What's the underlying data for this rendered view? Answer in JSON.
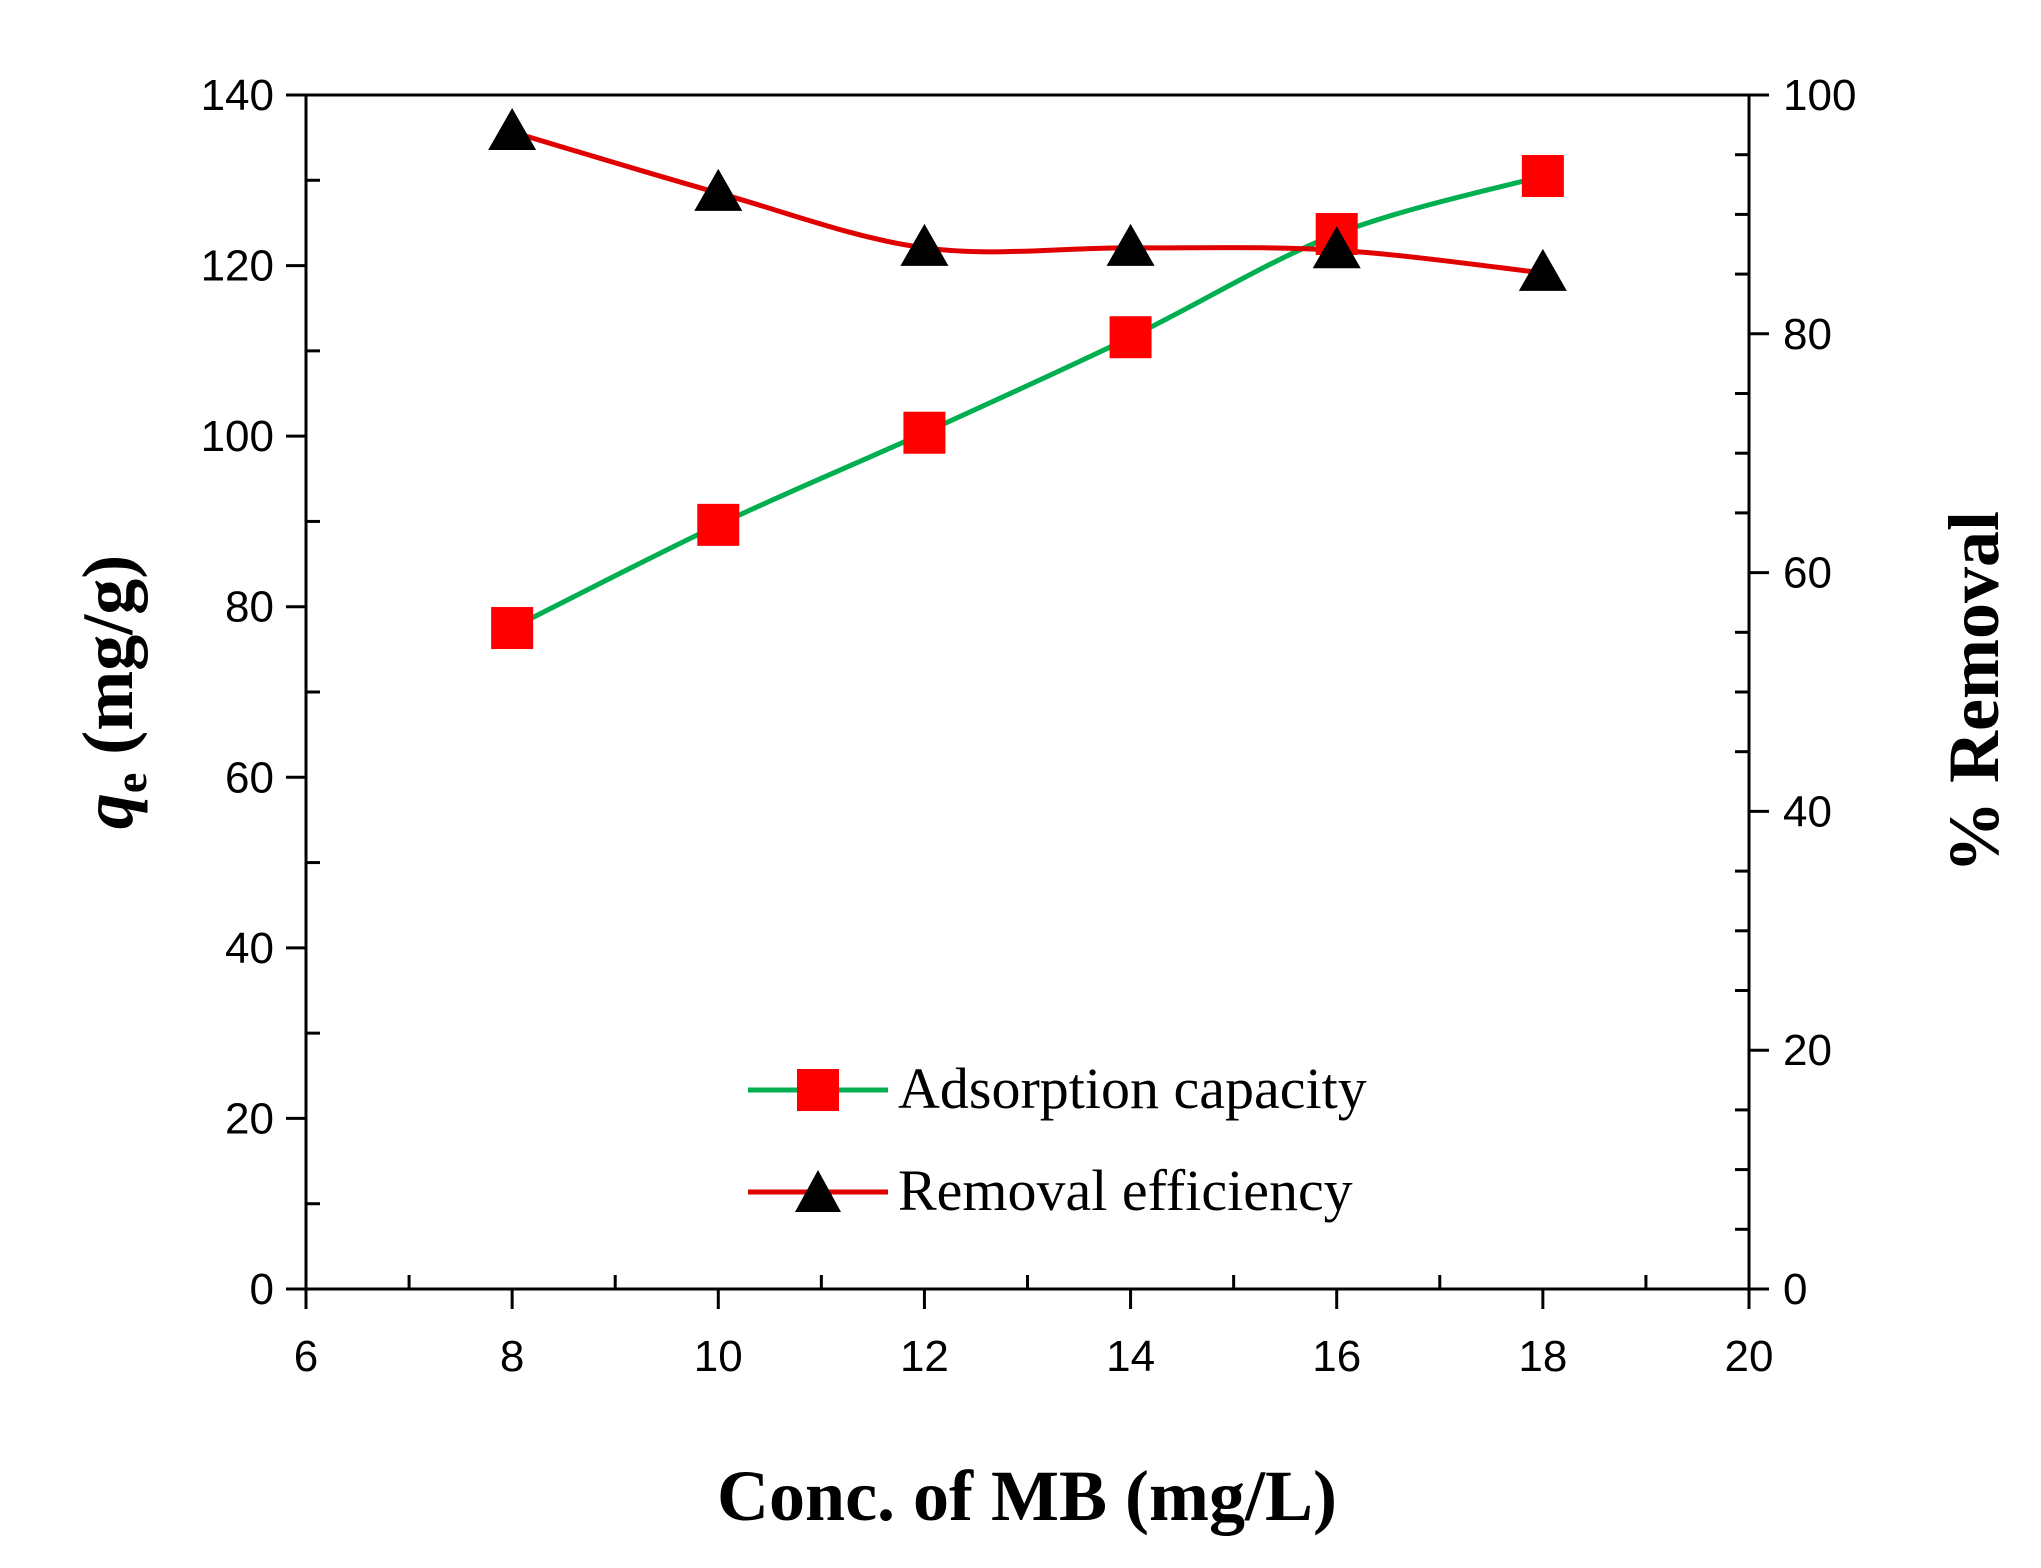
{
  "chart_data": {
    "type": "line",
    "title": "",
    "xlabel": "Conc. of MB (mg/L)",
    "ylabel_left_symbol": "q",
    "ylabel_left_subscript": "e",
    "ylabel_left_units": " (mg/g)",
    "ylabel_right": "% Removal",
    "xlim": [
      6,
      20
    ],
    "ylim_left": [
      0,
      140
    ],
    "ylim_right": [
      0,
      100
    ],
    "x_ticks": [
      6,
      8,
      10,
      12,
      14,
      16,
      18,
      20
    ],
    "y_left_ticks": [
      0,
      20,
      40,
      60,
      80,
      100,
      120,
      140
    ],
    "y_right_ticks": [
      0,
      20,
      40,
      60,
      80,
      100
    ],
    "series": [
      {
        "name": "Adsorption capacity",
        "axis": "left",
        "x": [
          8,
          10,
          12,
          14,
          16,
          18
        ],
        "values": [
          77.5,
          89.6,
          100.4,
          111.6,
          123.7,
          130.5
        ],
        "line_color": "#00b050",
        "marker": "square",
        "marker_color": "#ff0000"
      },
      {
        "name": "Removal efficiency",
        "axis": "right",
        "x": [
          8,
          10,
          12,
          14,
          16,
          18
        ],
        "values": [
          96.9,
          91.8,
          87.2,
          87.2,
          87.0,
          85.1
        ],
        "line_color": "#e00000",
        "marker": "triangle",
        "marker_color": "#000000"
      }
    ],
    "legend_position": "bottom-center"
  }
}
